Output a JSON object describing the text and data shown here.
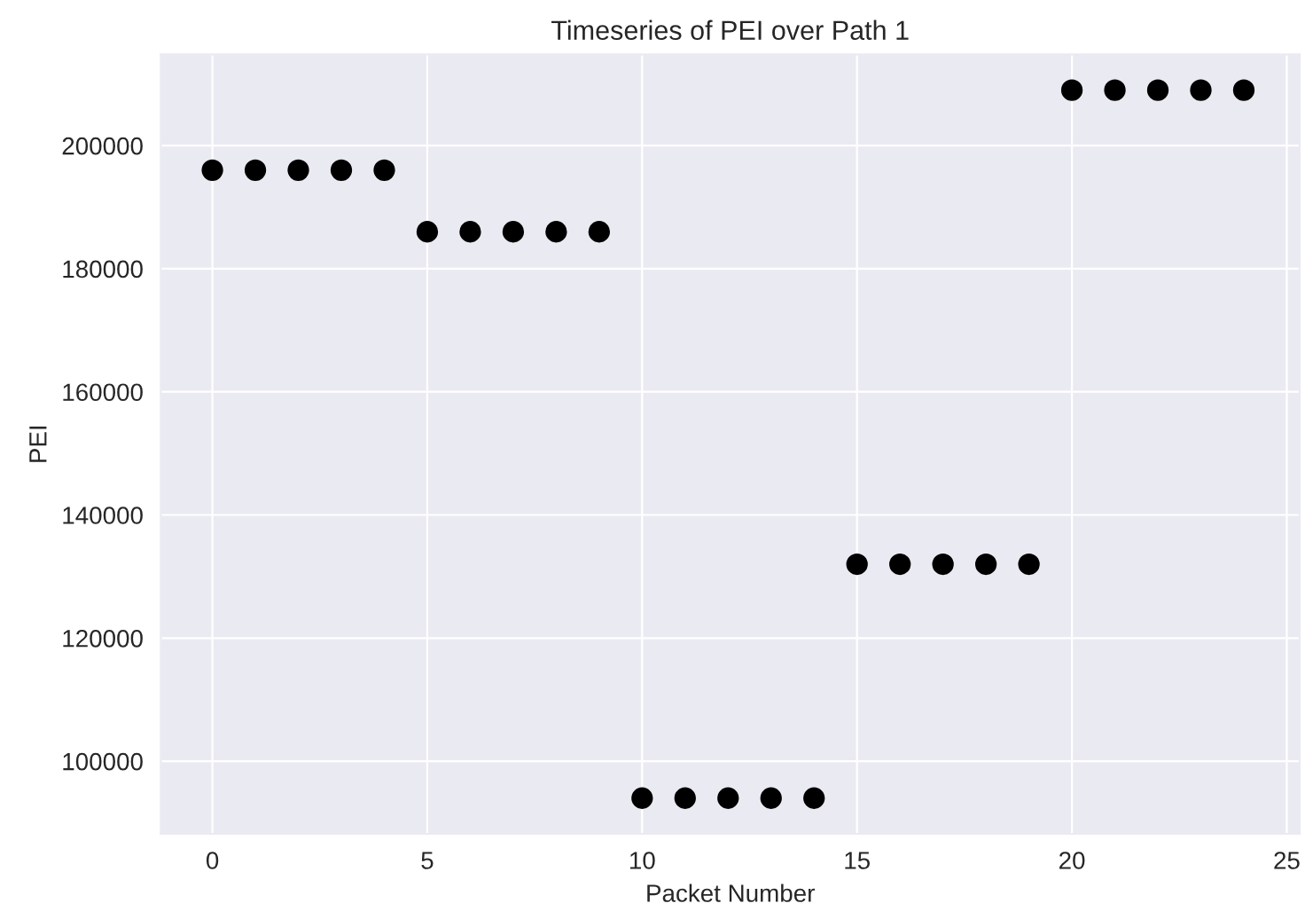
{
  "chart_data": {
    "type": "scatter",
    "title": "Timeseries of PEI over Path 1",
    "xlabel": "Packet Number",
    "ylabel": "PEI",
    "x": [
      0,
      1,
      2,
      3,
      4,
      5,
      6,
      7,
      8,
      9,
      10,
      11,
      12,
      13,
      14,
      15,
      16,
      17,
      18,
      19,
      20,
      21,
      22,
      23,
      24
    ],
    "series": [
      {
        "color": "#000000",
        "values": [
          196000,
          196000,
          196000,
          196000,
          196000,
          186000,
          186000,
          186000,
          186000,
          186000,
          94000,
          94000,
          94000,
          94000,
          94000,
          132000,
          132000,
          132000,
          132000,
          132000,
          209000,
          209000,
          209000,
          209000,
          209000
        ]
      }
    ],
    "xlim": [
      -1.2,
      25.3
    ],
    "ylim": [
      88200,
      214800
    ],
    "xticks": [
      0,
      5,
      10,
      15,
      20,
      25
    ],
    "yticks": [
      100000,
      120000,
      140000,
      160000,
      180000,
      200000
    ],
    "grid": true,
    "marker": "circle"
  }
}
